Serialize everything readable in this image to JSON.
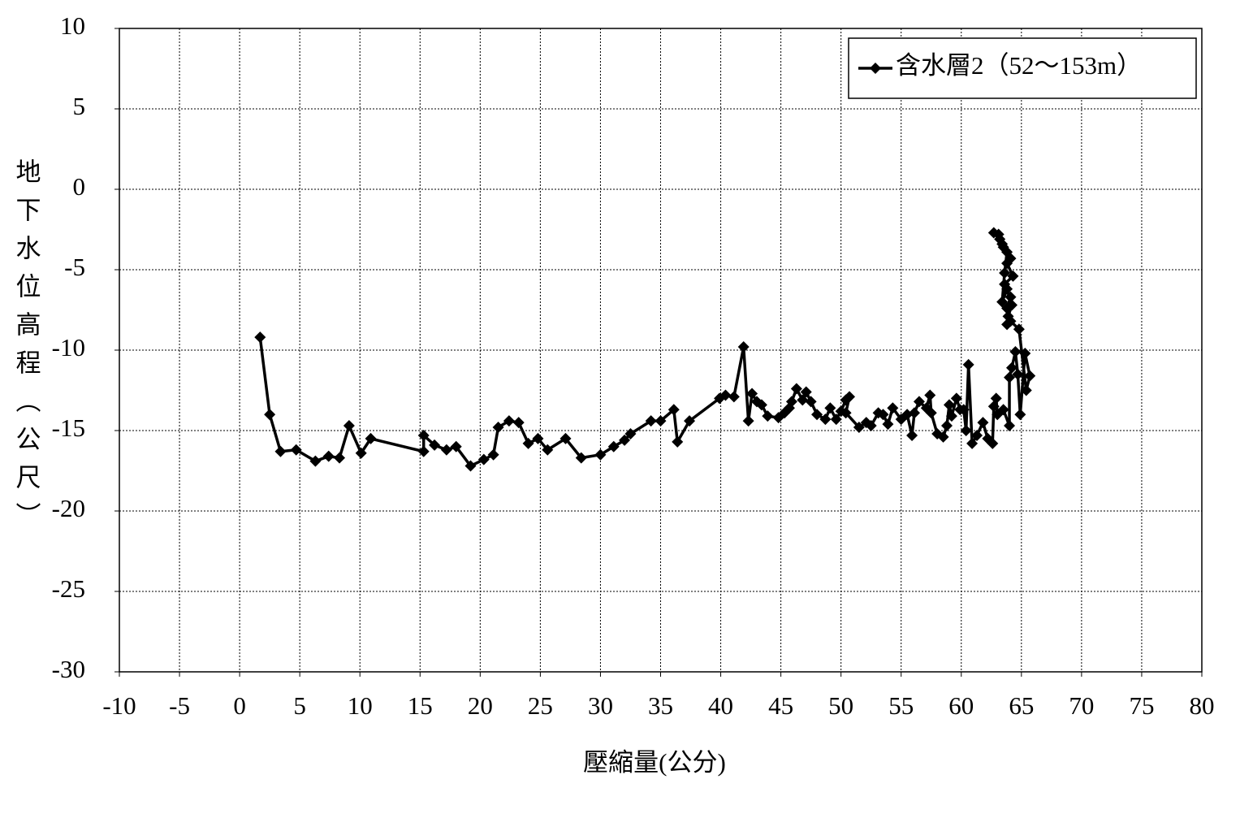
{
  "chart_data": {
    "type": "line",
    "x_label": "壓縮量(公分)",
    "y_label": "地下水位高程（公尺）",
    "xlim": [
      -10,
      80
    ],
    "xticks": [
      -10,
      -5,
      0,
      5,
      10,
      15,
      20,
      25,
      30,
      35,
      40,
      45,
      50,
      55,
      60,
      65,
      70,
      75,
      80
    ],
    "ylim": [
      -30,
      10
    ],
    "yticks": [
      -30,
      -25,
      -20,
      -15,
      -10,
      -5,
      0,
      5,
      10
    ],
    "grid": true,
    "legend": "upper right",
    "x": [
      1.7,
      2.5,
      3.4,
      4.7,
      6.3,
      7.4,
      8.3,
      9.1,
      10.1,
      10.9,
      15.3,
      15.3,
      16.2,
      17.2,
      18.0,
      19.2,
      20.3,
      21.1,
      21.5,
      22.4,
      23.2,
      24.0,
      24.8,
      25.6,
      27.1,
      28.4,
      30.0,
      31.1,
      32.0,
      32.5,
      34.2,
      35.0,
      36.1,
      36.4,
      37.4,
      39.9,
      40.4,
      41.1,
      41.9,
      42.3,
      42.6,
      43.0,
      43.4,
      43.9,
      44.8,
      45.3,
      45.7,
      45.9,
      46.3,
      46.8,
      47.1,
      47.5,
      48.0,
      48.7,
      49.1,
      49.6,
      50.0,
      50.4,
      50.7,
      50.4,
      51.5,
      52.1,
      52.5,
      53.1,
      53.5,
      53.9,
      54.3,
      55.0,
      55.5,
      55.9,
      56.1,
      56.5,
      57.1,
      57.4,
      57.5,
      58.0,
      58.5,
      58.8,
      59.0,
      59.2,
      59.6,
      59.9,
      60.2,
      60.4,
      60.6,
      60.9,
      61.3,
      61.8,
      62.2,
      62.6,
      62.7,
      62.9,
      63.0,
      63.5,
      64.0,
      64.0,
      64.2,
      64.5,
      64.7,
      64.9,
      65.3,
      65.7,
      65.4,
      64.8,
      64.1,
      63.8,
      64.1,
      63.6,
      64.3,
      63.8,
      64.1,
      63.5,
      63.2,
      62.7,
      63.1,
      63.4,
      63.8,
      63.6,
      63.4,
      63.8,
      64.2,
      63.9,
      63.8
    ],
    "series": [
      {
        "name": "含水層2（52～153m）",
        "color": "#000000",
        "values": [
          -9.2,
          -14.0,
          -16.3,
          -16.2,
          -16.9,
          -16.6,
          -16.7,
          -14.7,
          -16.4,
          -15.5,
          -16.3,
          -15.3,
          -15.9,
          -16.2,
          -16.0,
          -17.2,
          -16.8,
          -16.5,
          -14.8,
          -14.4,
          -14.5,
          -15.8,
          -15.5,
          -16.2,
          -15.5,
          -16.7,
          -16.5,
          -16.0,
          -15.6,
          -15.2,
          -14.4,
          -14.4,
          -13.7,
          -15.7,
          -14.4,
          -13.0,
          -12.8,
          -12.9,
          -9.8,
          -14.4,
          -12.7,
          -13.2,
          -13.4,
          -14.1,
          -14.2,
          -13.9,
          -13.6,
          -13.2,
          -12.4,
          -13.1,
          -12.6,
          -13.2,
          -14.0,
          -14.3,
          -13.6,
          -14.3,
          -13.8,
          -13.1,
          -12.9,
          -13.9,
          -14.8,
          -14.5,
          -14.7,
          -13.9,
          -14.0,
          -14.6,
          -13.6,
          -14.3,
          -14.0,
          -15.3,
          -13.9,
          -13.2,
          -13.6,
          -12.8,
          -13.9,
          -15.2,
          -15.4,
          -14.7,
          -13.4,
          -14.1,
          -13.0,
          -13.7,
          -13.7,
          -15.0,
          -10.9,
          -15.8,
          -15.3,
          -14.5,
          -15.5,
          -15.8,
          -13.5,
          -13.0,
          -14.0,
          -13.7,
          -14.7,
          -11.7,
          -11.1,
          -10.1,
          -11.5,
          -14.0,
          -10.2,
          -11.6,
          -12.5,
          -8.7,
          -8.2,
          -7.4,
          -6.7,
          -5.9,
          -5.4,
          -4.6,
          -4.3,
          -3.6,
          -3.1,
          -2.7,
          -2.8,
          -3.4,
          -3.9,
          -5.2,
          -7.0,
          -6.2,
          -7.2,
          -7.9,
          -8.4
        ]
      }
    ]
  }
}
